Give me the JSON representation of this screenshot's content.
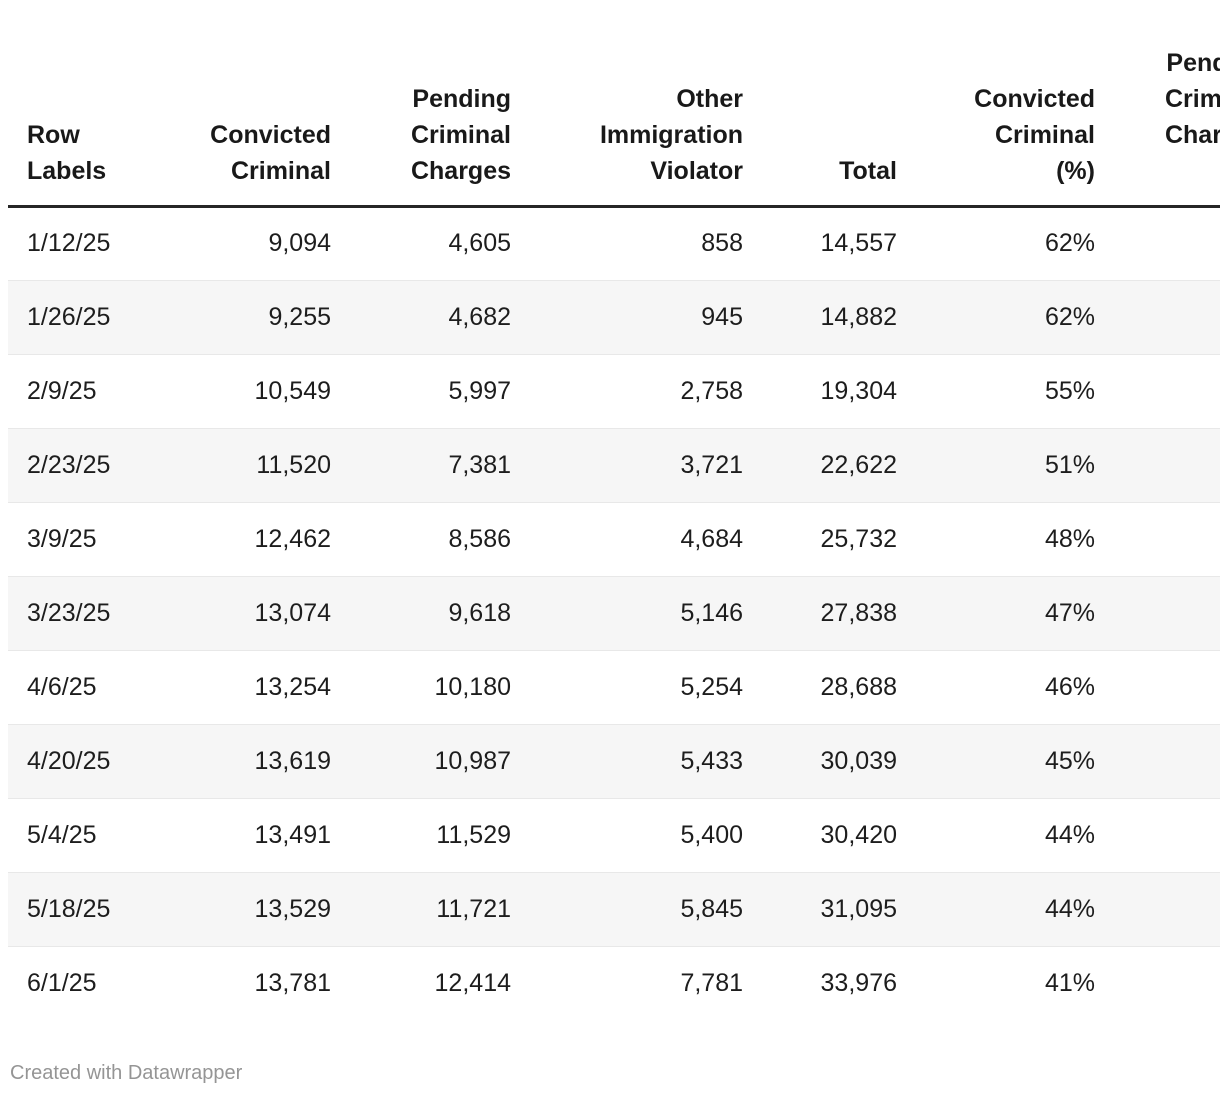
{
  "chart_data": {
    "type": "table",
    "columns": [
      "Row Labels",
      "Convicted Criminal",
      "Pending Criminal Charges",
      "Other Immigration Violator",
      "Total",
      "Convicted Criminal (%)",
      "Pending Criminal Charges (%)"
    ],
    "rows": [
      [
        "1/12/25",
        "9,094",
        "4,605",
        "858",
        "14,557",
        "62%",
        ""
      ],
      [
        "1/26/25",
        "9,255",
        "4,682",
        "945",
        "14,882",
        "62%",
        ""
      ],
      [
        "2/9/25",
        "10,549",
        "5,997",
        "2,758",
        "19,304",
        "55%",
        ""
      ],
      [
        "2/23/25",
        "11,520",
        "7,381",
        "3,721",
        "22,622",
        "51%",
        ""
      ],
      [
        "3/9/25",
        "12,462",
        "8,586",
        "4,684",
        "25,732",
        "48%",
        ""
      ],
      [
        "3/23/25",
        "13,074",
        "9,618",
        "5,146",
        "27,838",
        "47%",
        ""
      ],
      [
        "4/6/25",
        "13,254",
        "10,180",
        "5,254",
        "28,688",
        "46%",
        ""
      ],
      [
        "4/20/25",
        "13,619",
        "10,987",
        "5,433",
        "30,039",
        "45%",
        ""
      ],
      [
        "5/4/25",
        "13,491",
        "11,529",
        "5,400",
        "30,420",
        "44%",
        ""
      ],
      [
        "5/18/25",
        "13,529",
        "11,721",
        "5,845",
        "31,095",
        "44%",
        ""
      ],
      [
        "6/1/25",
        "13,781",
        "12,414",
        "7,781",
        "33,976",
        "41%",
        ""
      ]
    ],
    "layout_hints": {
      "striped_rows": true,
      "header_rule": true,
      "last_column_clipped_at_right_edge": true
    }
  },
  "footer": {
    "attribution": "Created with Datawrapper"
  },
  "colors": {
    "background": "#ffffff",
    "text": "#1d1d1d",
    "header_text": "#191919",
    "header_rule": "#262626",
    "row_stripe": "#f6f6f6",
    "row_border": "#e8e8e8",
    "footer_text": "#959595"
  }
}
